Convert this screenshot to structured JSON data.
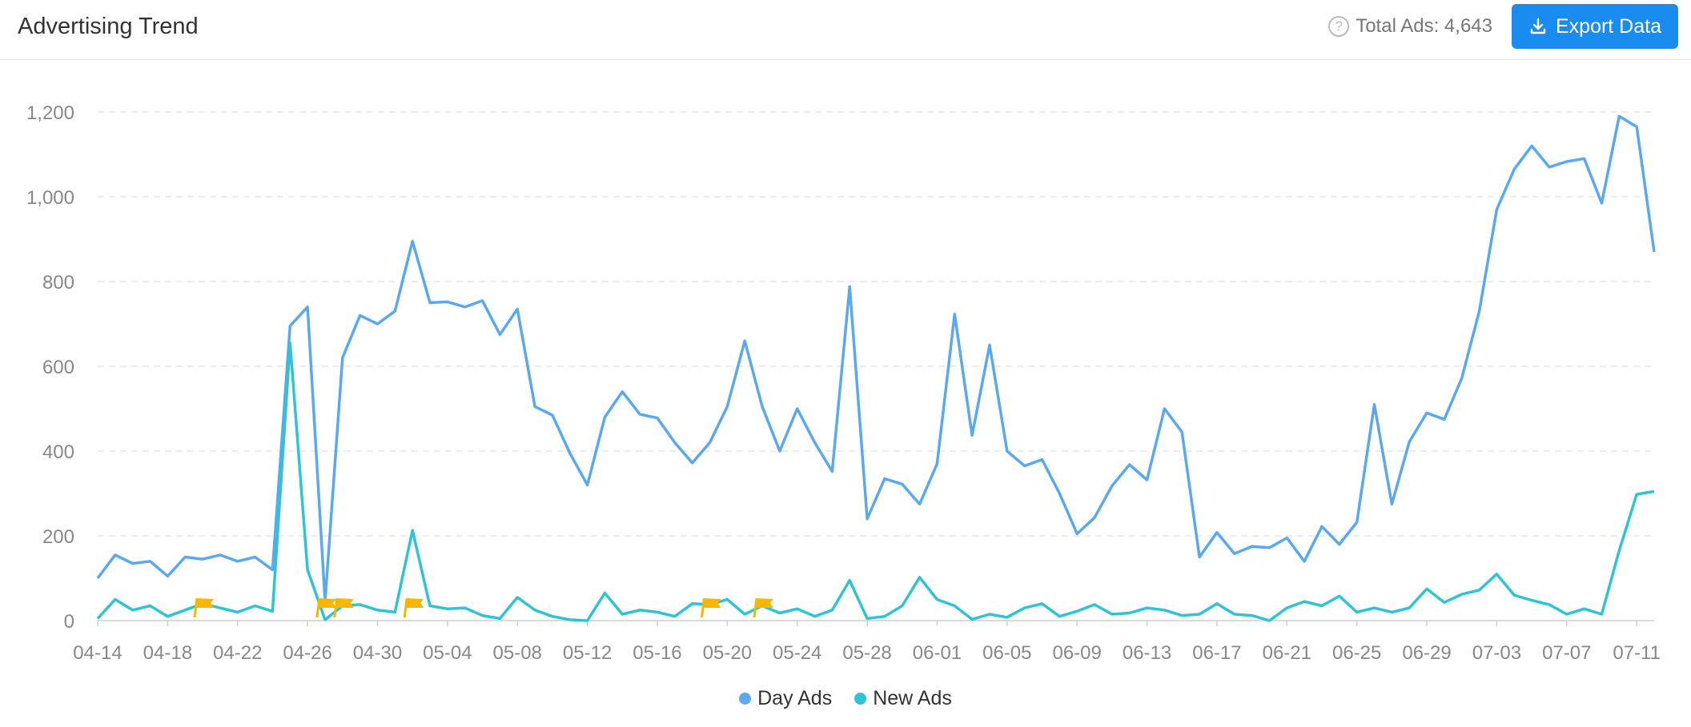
{
  "header": {
    "title": "Advertising Trend",
    "total_label": "Total Ads: 4,643",
    "help_icon": "question-circle-icon",
    "export_label": "Export Data",
    "export_icon": "download-icon",
    "accent": "#1a8cf0"
  },
  "chart_data": {
    "type": "line",
    "title": "",
    "xlabel": "",
    "ylabel": "",
    "ylim": [
      0,
      1200
    ],
    "yticks": [
      "0",
      "200",
      "400",
      "600",
      "800",
      "1,000",
      "1,200"
    ],
    "yticks_values": [
      0,
      200,
      400,
      600,
      800,
      1000,
      1200
    ],
    "grid": true,
    "legend_position": "bottom-center",
    "x": [
      "04-14",
      "04-15",
      "04-16",
      "04-17",
      "04-18",
      "04-19",
      "04-20",
      "04-21",
      "04-22",
      "04-23",
      "04-24",
      "04-25",
      "04-26",
      "04-27",
      "04-28",
      "04-29",
      "04-30",
      "05-01",
      "05-02",
      "05-03",
      "05-04",
      "05-05",
      "05-06",
      "05-07",
      "05-08",
      "05-09",
      "05-10",
      "05-11",
      "05-12",
      "05-13",
      "05-14",
      "05-15",
      "05-16",
      "05-17",
      "05-18",
      "05-19",
      "05-20",
      "05-21",
      "05-22",
      "05-23",
      "05-24",
      "05-25",
      "05-26",
      "05-27",
      "05-28",
      "05-29",
      "05-30",
      "05-31",
      "06-01",
      "06-02",
      "06-03",
      "06-04",
      "06-05",
      "06-06",
      "06-07",
      "06-08",
      "06-09",
      "06-10",
      "06-11",
      "06-12",
      "06-13",
      "06-14",
      "06-15",
      "06-16",
      "06-17",
      "06-18",
      "06-19",
      "06-20",
      "06-21",
      "06-22",
      "06-23",
      "06-24",
      "06-25",
      "06-26",
      "06-27",
      "06-28",
      "06-29",
      "06-30",
      "07-01",
      "07-02",
      "07-03",
      "07-04",
      "07-05",
      "07-06",
      "07-07",
      "07-08",
      "07-09",
      "07-10",
      "07-11",
      "07-12"
    ],
    "x_tick_labels": [
      "04-14",
      "04-18",
      "04-22",
      "04-26",
      "04-30",
      "05-04",
      "05-08",
      "05-12",
      "05-16",
      "05-20",
      "05-24",
      "05-28",
      "06-01",
      "06-05",
      "06-09",
      "06-13",
      "06-17",
      "06-21",
      "06-25",
      "06-29",
      "07-03",
      "07-07",
      "07-11"
    ],
    "series": [
      {
        "name": "Day Ads",
        "color": "#5aa9f0",
        "values": [
          100,
          155,
          135,
          140,
          105,
          150,
          145,
          155,
          140,
          150,
          120,
          695,
          740,
          45,
          620,
          720,
          700,
          730,
          895,
          750,
          752,
          740,
          755,
          675,
          735,
          505,
          485,
          395,
          320,
          480,
          540,
          487,
          478,
          420,
          372,
          420,
          505,
          660,
          505,
          400,
          500,
          420,
          352,
          788,
          240,
          335,
          322,
          275,
          370,
          723,
          437,
          650,
          400,
          365,
          380,
          300,
          205,
          243,
          318,
          368,
          332,
          500,
          445,
          150,
          208,
          158,
          175,
          172,
          195,
          140,
          222,
          180,
          232,
          510,
          275,
          422,
          490,
          475,
          572,
          730,
          970,
          1065,
          1120,
          1070,
          1083,
          1090,
          985,
          1190,
          1165,
          870
        ]
      },
      {
        "name": "New Ads",
        "color": "#2ec3d5",
        "values": [
          5,
          50,
          25,
          35,
          10,
          25,
          40,
          30,
          20,
          35,
          22,
          655,
          120,
          2,
          35,
          38,
          25,
          20,
          213,
          35,
          28,
          30,
          12,
          5,
          55,
          25,
          10,
          2,
          0,
          65,
          15,
          25,
          20,
          10,
          40,
          38,
          50,
          15,
          35,
          18,
          28,
          10,
          25,
          95,
          5,
          10,
          35,
          102,
          50,
          35,
          3,
          15,
          8,
          30,
          40,
          10,
          22,
          38,
          15,
          18,
          30,
          25,
          12,
          15,
          40,
          15,
          12,
          0,
          30,
          45,
          35,
          58,
          20,
          30,
          20,
          30,
          75,
          43,
          62,
          72,
          110,
          60,
          48,
          38,
          15,
          28,
          15,
          165,
          298,
          305
        ]
      }
    ],
    "annotations": {
      "type": "flag",
      "color": "#f5b700",
      "x": [
        "04-20",
        "04-27",
        "04-28",
        "05-02",
        "05-19",
        "05-22"
      ]
    }
  }
}
